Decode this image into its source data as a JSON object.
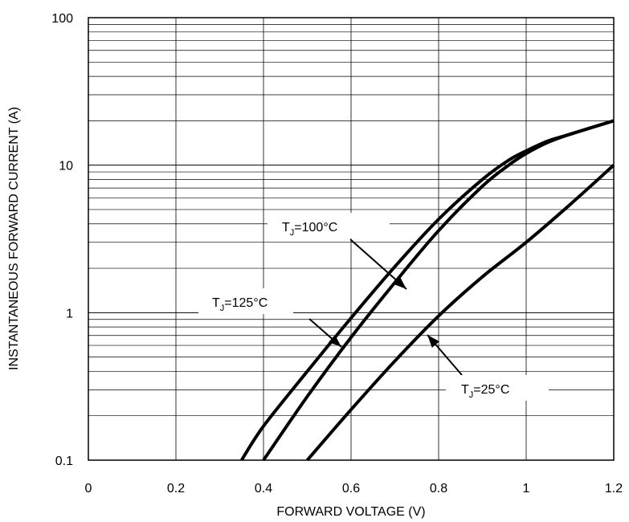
{
  "chart_data": {
    "type": "line",
    "title": "",
    "xlabel": "FORWARD VOLTAGE (V)",
    "ylabel": "INSTANTANEOUS FORWARD CURRENT (A)",
    "xlim": [
      0,
      1.2
    ],
    "ylim": [
      0.1,
      100
    ],
    "yscale": "log",
    "grid": true,
    "x_ticks": [
      0,
      0.2,
      0.4,
      0.6,
      0.8,
      1,
      1.2
    ],
    "x_tick_labels": [
      "0",
      "0.2",
      "0.4",
      "0.6",
      "0.8",
      "1",
      "1.2"
    ],
    "y_ticks": [
      0.1,
      1,
      10,
      100
    ],
    "y_tick_labels": [
      "0.1",
      "1",
      "10",
      "100"
    ],
    "series": [
      {
        "name": "TJ=125°C",
        "x": [
          0.35,
          0.4,
          0.5,
          0.6,
          0.7,
          0.8,
          0.9,
          0.96,
          1.0,
          1.05,
          1.1,
          1.2
        ],
        "y": [
          0.1,
          0.17,
          0.4,
          0.92,
          2.05,
          4.3,
          8.0,
          10.8,
          12.5,
          14.6,
          16.2,
          20
        ]
      },
      {
        "name": "TJ=100°C",
        "x": [
          0.4,
          0.5,
          0.6,
          0.7,
          0.8,
          0.9,
          0.96,
          1.0,
          1.05,
          1.1,
          1.2
        ],
        "y": [
          0.1,
          0.27,
          0.68,
          1.6,
          3.6,
          7.2,
          10.0,
          12.0,
          14.3,
          16.2,
          20
        ]
      },
      {
        "name": "TJ=25°C",
        "x": [
          0.5,
          0.6,
          0.7,
          0.8,
          0.9,
          1.0,
          1.1,
          1.2
        ],
        "y": [
          0.1,
          0.22,
          0.47,
          0.95,
          1.75,
          3.0,
          5.4,
          10
        ]
      }
    ],
    "annotations": [
      {
        "main": "T",
        "sub": "J",
        "rest": "=100°C"
      },
      {
        "main": "T",
        "sub": "J",
        "rest": "=125°C"
      },
      {
        "main": "T",
        "sub": "J",
        "rest": "=25°C"
      }
    ]
  }
}
